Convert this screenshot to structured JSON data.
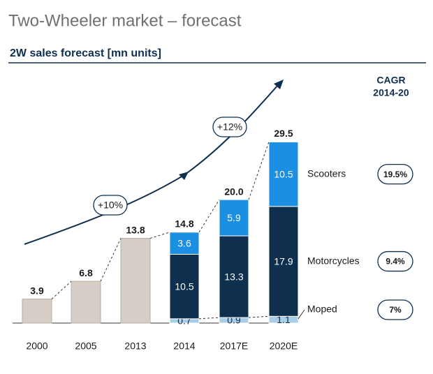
{
  "chart_data": {
    "type": "stacked-bar",
    "title": "Two-Wheeler market – forecast",
    "subtitle": "2W sales forecast [mn units]",
    "categories": [
      "2000",
      "2005",
      "2013",
      "2014",
      "2017E",
      "2020E"
    ],
    "series": [
      {
        "color": "#d6cec6",
        "values": [
          3.9,
          6.8,
          13.8,
          null,
          null,
          null
        ]
      },
      {
        "name": "Moped",
        "color": "#a9cde6",
        "values": [
          null,
          null,
          null,
          0.7,
          0.9,
          1.1
        ],
        "cagr": 7,
        "cagr_label": "7%"
      },
      {
        "name": "Motorcycles",
        "color": "#0e2f4e",
        "values": [
          null,
          null,
          null,
          10.5,
          13.3,
          17.9
        ],
        "cagr": 9.4,
        "cagr_label": "9.4%"
      },
      {
        "name": "Scooters",
        "color": "#1b8fe2",
        "values": [
          null,
          null,
          null,
          3.6,
          5.9,
          10.5
        ],
        "cagr": 19.5,
        "cagr_label": "19.5%"
      }
    ],
    "totals": {
      "values": [
        3.9,
        6.8,
        13.8,
        14.8,
        20,
        29.5
      ],
      "value_labels": [
        "3.9",
        "6.8",
        "13.8",
        "14.8",
        "20.0",
        "29.5"
      ]
    },
    "cagr_title": [
      "CAGR",
      "2014-20"
    ],
    "annotations": [
      {
        "value": 10,
        "label": "+10%"
      },
      {
        "value": 12,
        "label": "+12%"
      }
    ]
  }
}
